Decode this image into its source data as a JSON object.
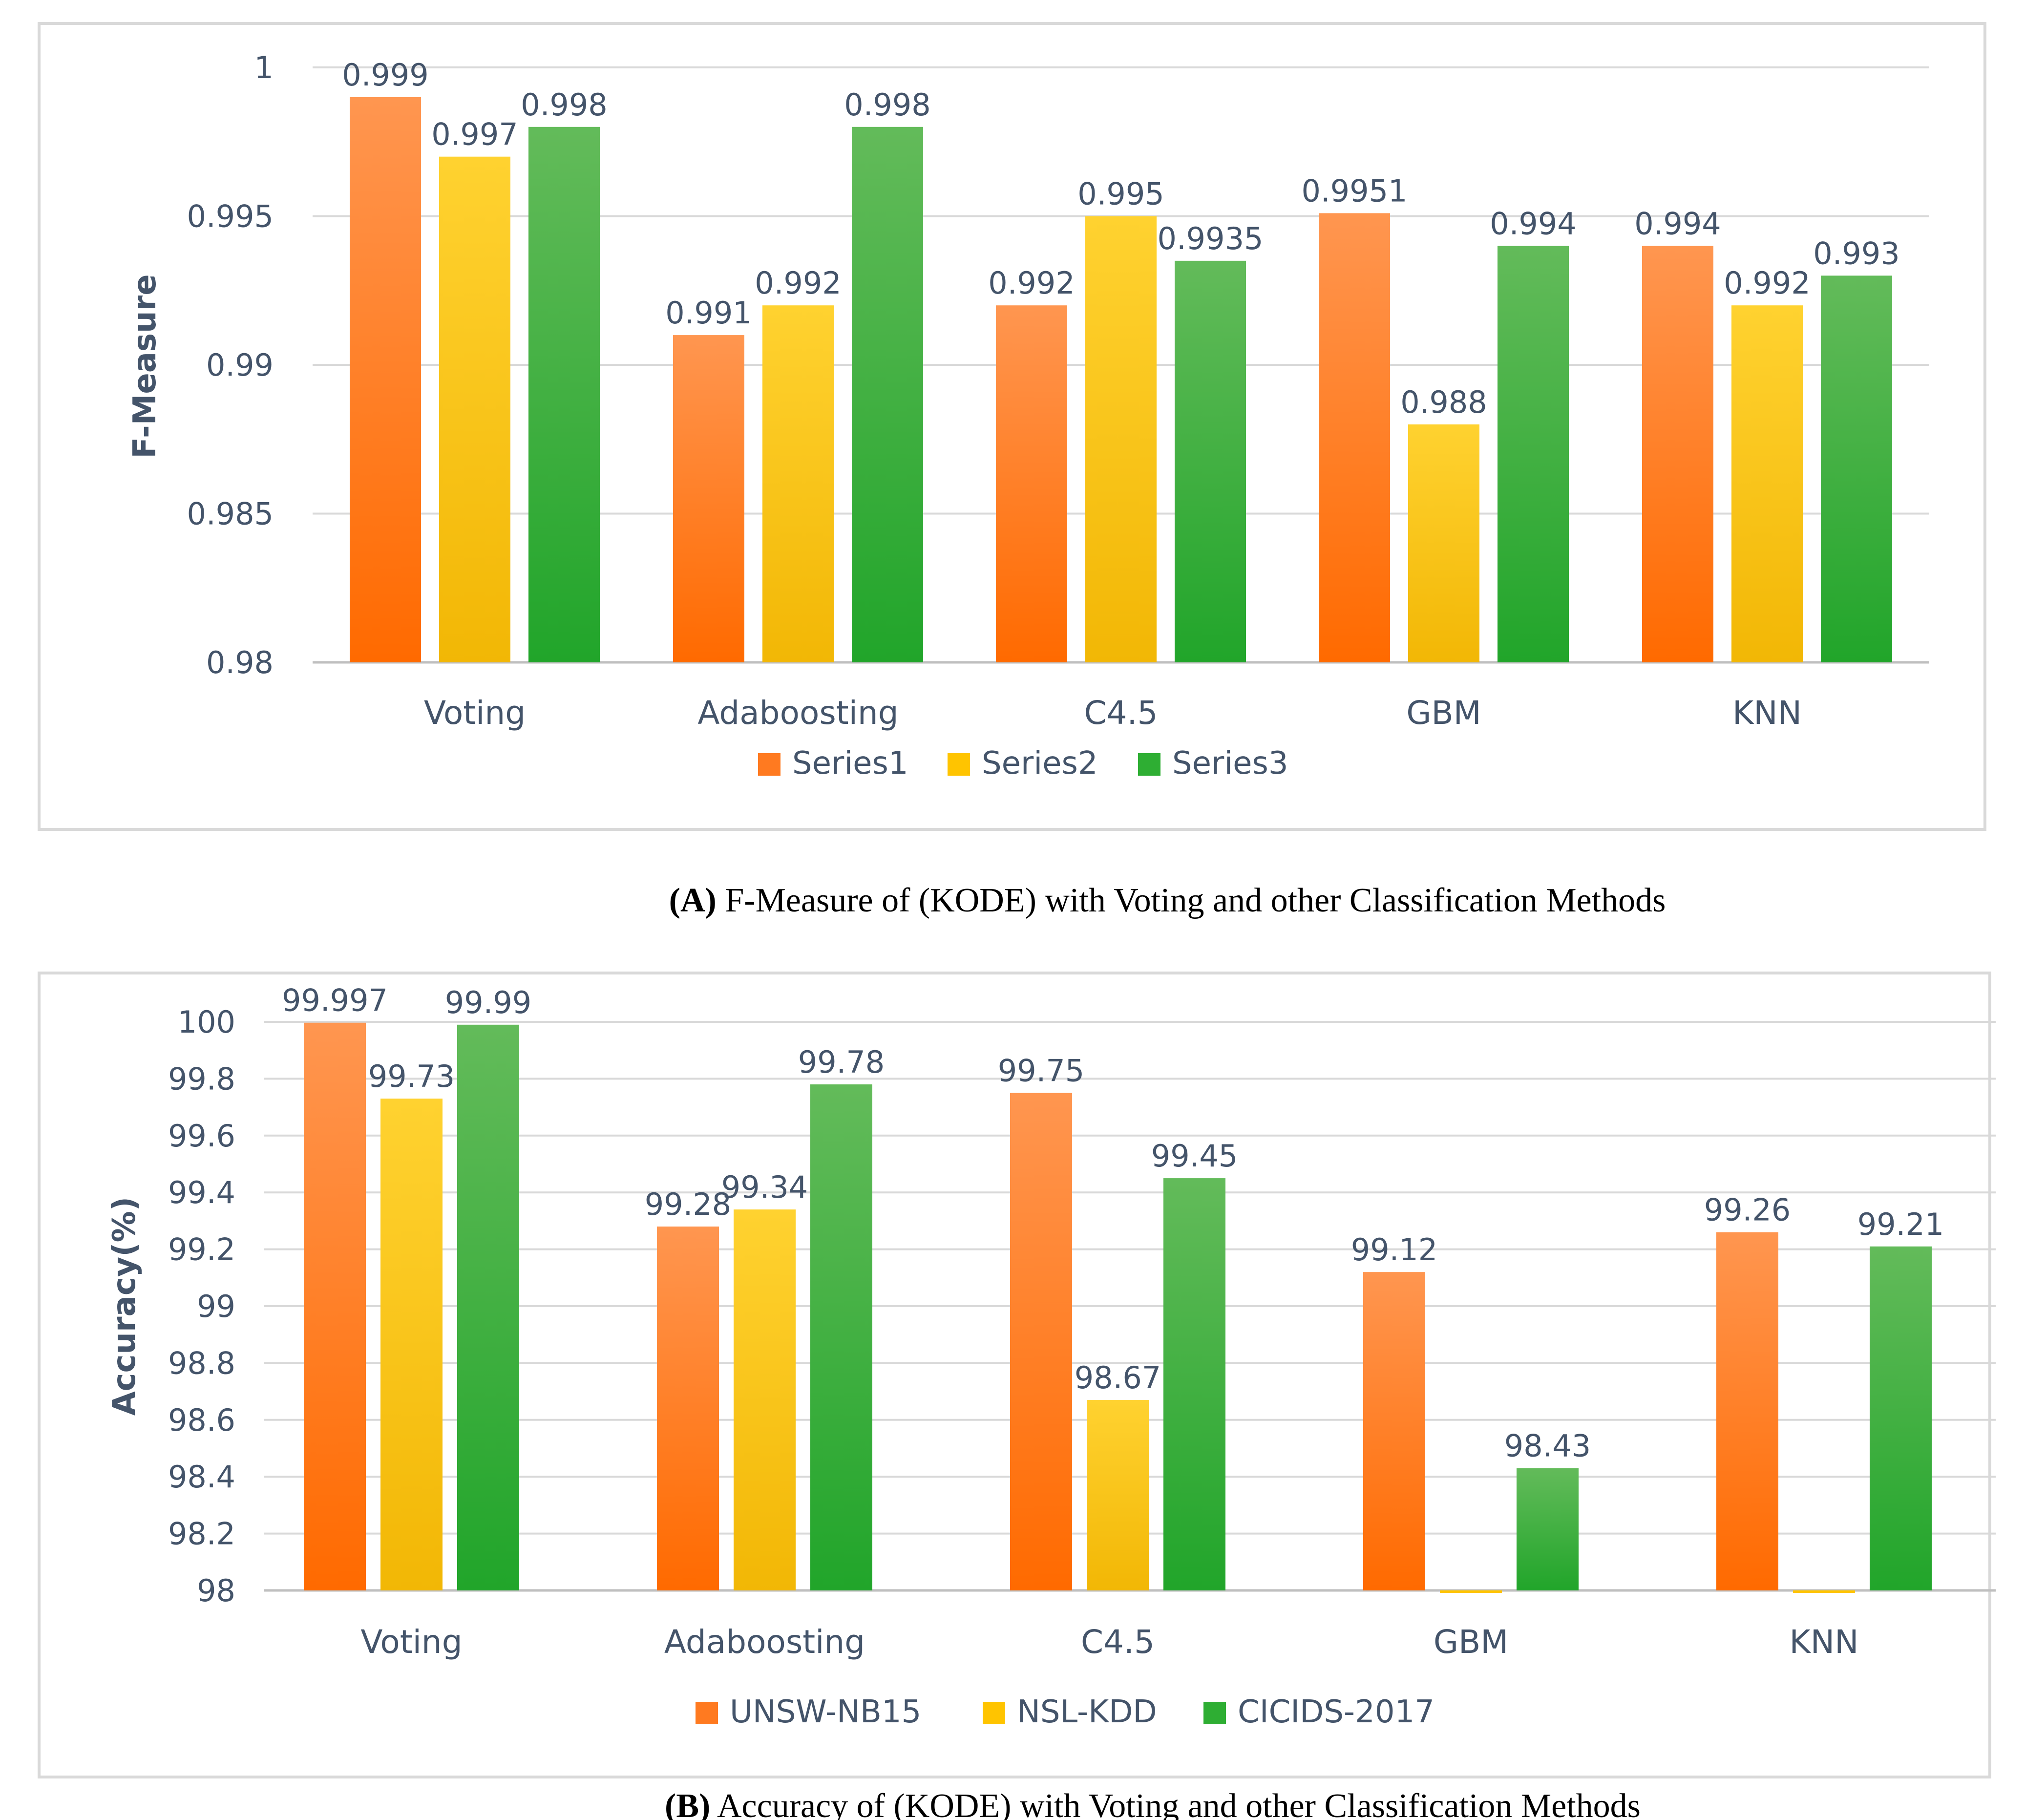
{
  "chart_data": [
    {
      "type": "bar",
      "panel_label": "(A)",
      "caption": "F-Measure of (KODE) with Voting  and other Classification Methods",
      "ylabel": "F-Measure",
      "xlabel": "",
      "categories": [
        "Voting",
        "Adaboosting",
        "C4.5",
        "GBM",
        "KNN"
      ],
      "ylim": [
        0.98,
        1
      ],
      "yticks": [
        "0.98",
        "0.985",
        "0.99",
        "0.995",
        "1"
      ],
      "tick_values": [
        0.98,
        0.985,
        0.99,
        0.995,
        1.0
      ],
      "grid": "horizontal",
      "legend_position": "bottom",
      "series": [
        {
          "name": "Series1",
          "values": [
            0.999,
            0.991,
            0.992,
            0.9951,
            0.994
          ],
          "labels": [
            "0.999",
            "0.991",
            "0.992",
            "0.9951",
            "0.994"
          ]
        },
        {
          "name": "Series2",
          "values": [
            0.997,
            0.992,
            0.995,
            0.988,
            0.992
          ],
          "labels": [
            "0.997",
            "0.992",
            "0.995",
            "0.988",
            "0.992"
          ]
        },
        {
          "name": "Series3",
          "values": [
            0.998,
            0.998,
            0.9935,
            0.994,
            0.993
          ],
          "labels": [
            "0.998",
            "0.998",
            "0.9935",
            "0.994",
            "0.993"
          ]
        }
      ]
    },
    {
      "type": "bar",
      "panel_label": "(B)",
      "caption": "Accuracy of (KODE) with Voting and other Classification Methods",
      "ylabel": "Accuracy(%)",
      "xlabel": "",
      "categories": [
        "Voting",
        "Adaboosting",
        "C4.5",
        "GBM",
        "KNN"
      ],
      "ylim": [
        98,
        100
      ],
      "yticks": [
        "98",
        "98.2",
        "98.4",
        "98.6",
        "98.8",
        "99",
        "99.2",
        "99.4",
        "99.6",
        "99.8",
        "100"
      ],
      "tick_values": [
        98,
        98.2,
        98.4,
        98.6,
        98.8,
        99,
        99.2,
        99.4,
        99.6,
        99.8,
        100
      ],
      "grid": "horizontal",
      "legend_position": "bottom",
      "series": [
        {
          "name": "UNSW-NB15",
          "values": [
            99.997,
            99.28,
            99.75,
            99.12,
            99.26
          ],
          "labels": [
            "99.997",
            "99.28",
            "99.75",
            "99.12",
            "99.26"
          ]
        },
        {
          "name": "NSL-KDD",
          "values": [
            99.73,
            99.34,
            98.67,
            null,
            null
          ],
          "labels": [
            "99.73",
            "99.34",
            "98.67",
            "",
            ""
          ]
        },
        {
          "name": "CICIDS-2017",
          "values": [
            99.99,
            99.78,
            99.45,
            98.43,
            99.21
          ],
          "labels": [
            "99.99",
            "99.78",
            "99.45",
            "98.43",
            "99.21"
          ]
        }
      ]
    }
  ],
  "colors": {
    "series1_top": "#FF9650",
    "series1_bottom": "#FF6A00",
    "series2_top": "#FFD230",
    "series2_bottom": "#F2B705",
    "series3_top": "#63BB5A",
    "series3_bottom": "#21A52A",
    "axis_text": "#44546A",
    "grid": "#D9D9D9",
    "frame": "#D9D9D9"
  }
}
